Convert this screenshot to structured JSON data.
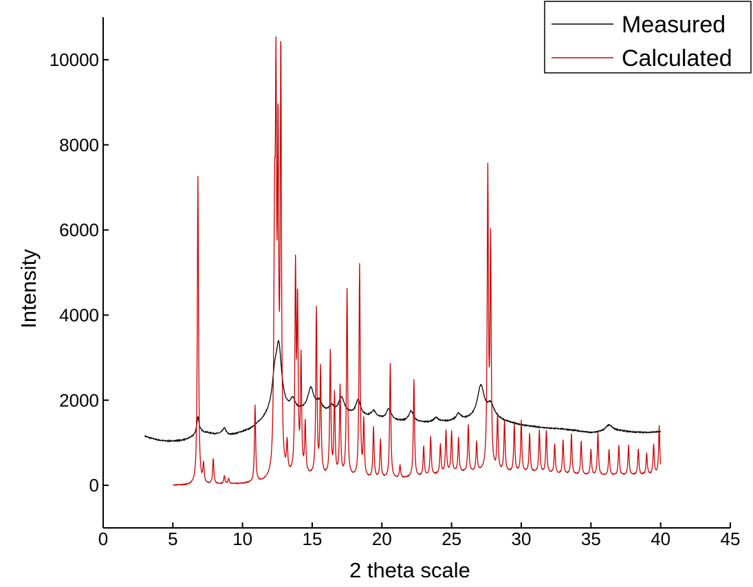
{
  "chart_data": {
    "type": "line",
    "xlabel": "2 theta scale",
    "ylabel": "Intensity",
    "xlim": [
      0,
      45
    ],
    "ylim": [
      -1000,
      11000
    ],
    "x_ticks": [
      0,
      5,
      10,
      15,
      20,
      25,
      30,
      35,
      40,
      45
    ],
    "y_ticks": [
      0,
      2000,
      4000,
      6000,
      8000,
      10000
    ],
    "grid": false,
    "legend_position": "top-right",
    "series": [
      {
        "name": "Measured",
        "color": "#000000",
        "background": [
          [
            3.0,
            1150
          ],
          [
            3.5,
            1100
          ],
          [
            4.0,
            1060
          ],
          [
            4.5,
            1040
          ],
          [
            5.0,
            1040
          ],
          [
            5.5,
            1050
          ],
          [
            6.0,
            1080
          ],
          [
            6.5,
            1150
          ],
          [
            7.0,
            1250
          ],
          [
            7.5,
            1230
          ],
          [
            8.0,
            1200
          ],
          [
            8.5,
            1200
          ],
          [
            9.0,
            1170
          ],
          [
            9.5,
            1200
          ],
          [
            10.0,
            1250
          ],
          [
            10.5,
            1300
          ],
          [
            11.0,
            1400
          ],
          [
            11.5,
            1520
          ],
          [
            12.0,
            1650
          ],
          [
            13.0,
            1700
          ],
          [
            14.0,
            1720
          ],
          [
            15.0,
            1760
          ],
          [
            16.0,
            1700
          ],
          [
            17.0,
            1650
          ],
          [
            18.0,
            1650
          ],
          [
            19.0,
            1600
          ],
          [
            20.0,
            1560
          ],
          [
            21.0,
            1510
          ],
          [
            22.0,
            1490
          ],
          [
            23.0,
            1470
          ],
          [
            24.0,
            1480
          ],
          [
            25.0,
            1500
          ],
          [
            26.0,
            1530
          ],
          [
            27.0,
            1560
          ],
          [
            28.0,
            1550
          ],
          [
            29.0,
            1480
          ],
          [
            30.0,
            1410
          ],
          [
            31.0,
            1370
          ],
          [
            32.0,
            1340
          ],
          [
            33.0,
            1320
          ],
          [
            34.0,
            1280
          ],
          [
            35.0,
            1230
          ],
          [
            36.0,
            1260
          ],
          [
            37.0,
            1280
          ],
          [
            38.0,
            1250
          ],
          [
            39.0,
            1240
          ],
          [
            40.0,
            1260
          ]
        ],
        "peaks": [
          [
            6.8,
            400,
            0.1
          ],
          [
            8.7,
            150,
            0.15
          ],
          [
            12.3,
            600,
            0.2
          ],
          [
            12.6,
            1500,
            0.25
          ],
          [
            13.6,
            250,
            0.2
          ],
          [
            14.9,
            500,
            0.25
          ],
          [
            15.5,
            200,
            0.2
          ],
          [
            16.4,
            150,
            0.2
          ],
          [
            17.1,
            400,
            0.25
          ],
          [
            18.3,
            350,
            0.2
          ],
          [
            19.4,
            150,
            0.2
          ],
          [
            20.5,
            250,
            0.2
          ],
          [
            22.1,
            250,
            0.2
          ],
          [
            23.9,
            100,
            0.2
          ],
          [
            25.5,
            150,
            0.2
          ],
          [
            27.1,
            750,
            0.3
          ],
          [
            27.8,
            300,
            0.3
          ],
          [
            36.3,
            150,
            0.3
          ]
        ]
      },
      {
        "name": "Calculated",
        "color": "#cc0000",
        "background": [
          [
            5.0,
            0
          ],
          [
            6.0,
            0
          ],
          [
            8.0,
            20
          ],
          [
            10.0,
            30
          ],
          [
            11.5,
            60
          ],
          [
            13.0,
            150
          ],
          [
            15.0,
            200
          ],
          [
            17.0,
            180
          ],
          [
            19.0,
            150
          ],
          [
            21.0,
            150
          ],
          [
            23.0,
            200
          ],
          [
            25.0,
            300
          ],
          [
            27.0,
            300
          ],
          [
            29.0,
            300
          ],
          [
            31.0,
            300
          ],
          [
            33.0,
            250
          ],
          [
            35.0,
            230
          ],
          [
            37.0,
            230
          ],
          [
            40.0,
            250
          ]
        ],
        "peaks": [
          [
            6.8,
            7250,
            0.05
          ],
          [
            7.2,
            450,
            0.05
          ],
          [
            7.9,
            600,
            0.05
          ],
          [
            8.7,
            200,
            0.05
          ],
          [
            9.0,
            120,
            0.05
          ],
          [
            10.9,
            1800,
            0.05
          ],
          [
            12.3,
            5400,
            0.06
          ],
          [
            12.4,
            8050,
            0.05
          ],
          [
            12.55,
            7350,
            0.05
          ],
          [
            12.75,
            9900,
            0.05
          ],
          [
            13.2,
            700,
            0.05
          ],
          [
            13.8,
            4750,
            0.05
          ],
          [
            13.95,
            3900,
            0.05
          ],
          [
            14.2,
            2700,
            0.05
          ],
          [
            14.5,
            1200,
            0.05
          ],
          [
            15.3,
            3900,
            0.05
          ],
          [
            15.6,
            2500,
            0.05
          ],
          [
            16.3,
            2900,
            0.05
          ],
          [
            16.6,
            1900,
            0.05
          ],
          [
            17.0,
            2100,
            0.05
          ],
          [
            17.5,
            4400,
            0.05
          ],
          [
            18.4,
            5000,
            0.05
          ],
          [
            18.7,
            1300,
            0.05
          ],
          [
            19.4,
            1200,
            0.05
          ],
          [
            19.9,
            900,
            0.05
          ],
          [
            20.6,
            2700,
            0.05
          ],
          [
            21.3,
            300,
            0.05
          ],
          [
            22.3,
            2300,
            0.05
          ],
          [
            23.0,
            700,
            0.05
          ],
          [
            23.5,
            900,
            0.05
          ],
          [
            24.2,
            700,
            0.05
          ],
          [
            24.6,
            1000,
            0.05
          ],
          [
            25.0,
            950,
            0.05
          ],
          [
            25.5,
            800,
            0.05
          ],
          [
            26.2,
            1100,
            0.05
          ],
          [
            26.8,
            700,
            0.05
          ],
          [
            27.6,
            6950,
            0.05
          ],
          [
            27.8,
            5300,
            0.05
          ],
          [
            28.3,
            1300,
            0.05
          ],
          [
            28.8,
            1200,
            0.05
          ],
          [
            29.5,
            1100,
            0.05
          ],
          [
            30.0,
            1200,
            0.05
          ],
          [
            30.6,
            900,
            0.05
          ],
          [
            31.3,
            1000,
            0.05
          ],
          [
            31.8,
            1000,
            0.05
          ],
          [
            32.4,
            700,
            0.05
          ],
          [
            33.0,
            800,
            0.05
          ],
          [
            33.6,
            950,
            0.05
          ],
          [
            34.3,
            800,
            0.05
          ],
          [
            35.0,
            600,
            0.05
          ],
          [
            35.5,
            1000,
            0.05
          ],
          [
            36.3,
            600,
            0.05
          ],
          [
            37.0,
            700,
            0.05
          ],
          [
            37.7,
            700,
            0.05
          ],
          [
            38.4,
            600,
            0.05
          ],
          [
            39.0,
            500,
            0.05
          ],
          [
            39.5,
            700,
            0.05
          ],
          [
            39.9,
            1150,
            0.05
          ]
        ]
      }
    ]
  }
}
